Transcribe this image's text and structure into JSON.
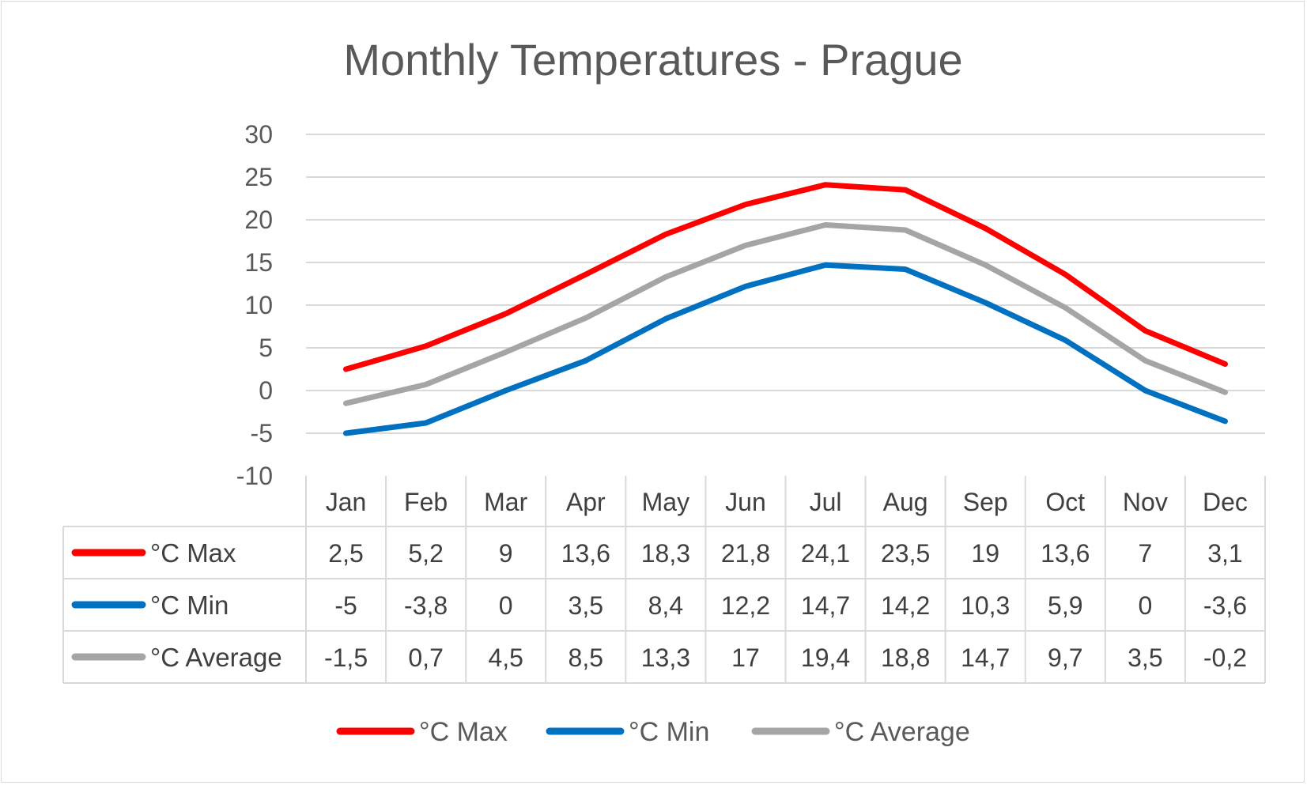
{
  "chart_data": {
    "type": "line",
    "title": "Monthly Temperatures - Prague",
    "xlabel": "",
    "ylabel": "",
    "ylim": [
      -10,
      30
    ],
    "yticks": [
      30,
      25,
      20,
      15,
      10,
      5,
      0,
      -5,
      -10
    ],
    "grid": true,
    "legend_position": "bottom",
    "categories": [
      "Jan",
      "Feb",
      "Mar",
      "Apr",
      "May",
      "Jun",
      "Jul",
      "Aug",
      "Sep",
      "Oct",
      "Nov",
      "Dec"
    ],
    "series": [
      {
        "name": "°C Max",
        "color": "#ff0000",
        "values": [
          2.5,
          5.2,
          9,
          13.6,
          18.3,
          21.8,
          24.1,
          23.5,
          19,
          13.6,
          7,
          3.1
        ],
        "labels": [
          "2,5",
          "5,2",
          "9",
          "13,6",
          "18,3",
          "21,8",
          "24,1",
          "23,5",
          "19",
          "13,6",
          "7",
          "3,1"
        ]
      },
      {
        "name": "°C Min",
        "color": "#0070c0",
        "values": [
          -5,
          -3.8,
          0,
          3.5,
          8.4,
          12.2,
          14.7,
          14.2,
          10.3,
          5.9,
          0,
          -3.6
        ],
        "labels": [
          "-5",
          "-3,8",
          "0",
          "3,5",
          "8,4",
          "12,2",
          "14,7",
          "14,2",
          "10,3",
          "5,9",
          "0",
          "-3,6"
        ]
      },
      {
        "name": "°C Average",
        "color": "#a5a5a5",
        "values": [
          -1.5,
          0.7,
          4.5,
          8.5,
          13.3,
          17,
          19.4,
          18.8,
          14.7,
          9.7,
          3.5,
          -0.2
        ],
        "labels": [
          "-1,5",
          "0,7",
          "4,5",
          "8,5",
          "13,3",
          "17",
          "19,4",
          "18,8",
          "14,7",
          "9,7",
          "3,5",
          "-0,2"
        ]
      }
    ]
  }
}
